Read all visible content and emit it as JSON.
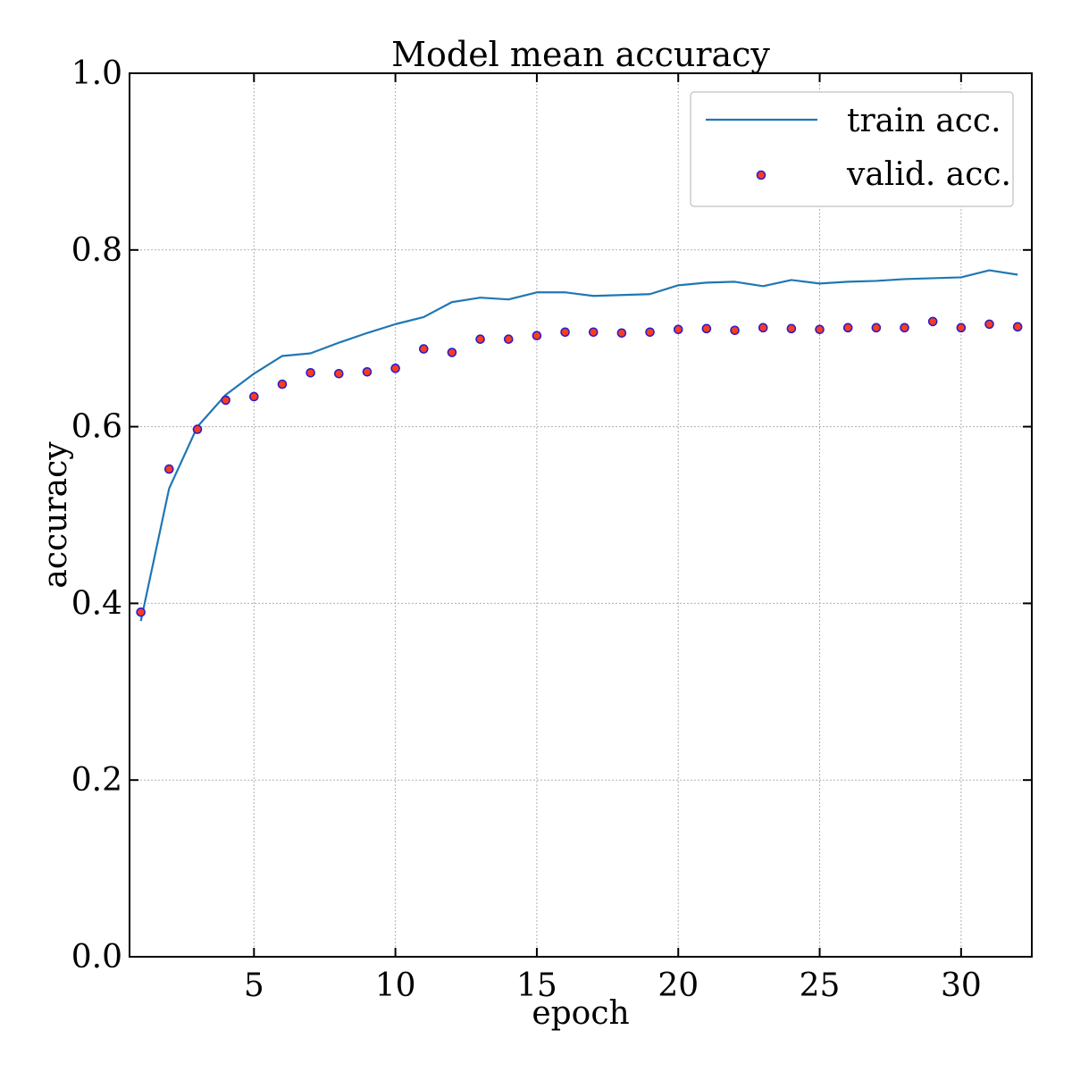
{
  "chart_data": {
    "type": "line",
    "title": "Model mean accuracy",
    "xlabel": "epoch",
    "ylabel": "accuracy",
    "xlim": [
      0.6,
      32.5
    ],
    "ylim": [
      0.0,
      1.0
    ],
    "xticks": [
      5,
      10,
      15,
      20,
      25,
      30
    ],
    "yticks": [
      0.0,
      0.2,
      0.4,
      0.6,
      0.8,
      1.0
    ],
    "xtick_labels": [
      "5",
      "10",
      "15",
      "20",
      "25",
      "30"
    ],
    "ytick_labels": [
      "0.0",
      "0.2",
      "0.4",
      "0.6",
      "0.8",
      "1.0"
    ],
    "grid": true,
    "legend_position": "top-right",
    "series": [
      {
        "name": "train acc.",
        "style": "line",
        "color": "#1f77b4",
        "x": [
          1,
          2,
          3,
          4,
          5,
          6,
          7,
          8,
          9,
          10,
          11,
          12,
          13,
          14,
          15,
          16,
          17,
          18,
          19,
          20,
          21,
          22,
          23,
          24,
          25,
          26,
          27,
          28,
          29,
          30,
          31,
          32
        ],
        "y": [
          0.38,
          0.53,
          0.6,
          0.636,
          0.66,
          0.68,
          0.683,
          0.695,
          0.706,
          0.716,
          0.724,
          0.741,
          0.746,
          0.744,
          0.752,
          0.752,
          0.748,
          0.749,
          0.75,
          0.76,
          0.763,
          0.764,
          0.759,
          0.766,
          0.762,
          0.764,
          0.765,
          0.767,
          0.768,
          0.769,
          0.777,
          0.772
        ]
      },
      {
        "name": "valid. acc.",
        "style": "scatter",
        "marker_face": "#ff3b1f",
        "marker_edge": "#2d1ec8",
        "x": [
          1,
          2,
          3,
          4,
          5,
          6,
          7,
          8,
          9,
          10,
          11,
          12,
          13,
          14,
          15,
          16,
          17,
          18,
          19,
          20,
          21,
          22,
          23,
          24,
          25,
          26,
          27,
          28,
          29,
          30,
          31,
          32
        ],
        "y": [
          0.39,
          0.552,
          0.597,
          0.63,
          0.634,
          0.648,
          0.661,
          0.66,
          0.662,
          0.666,
          0.688,
          0.684,
          0.699,
          0.699,
          0.703,
          0.707,
          0.707,
          0.706,
          0.707,
          0.71,
          0.711,
          0.709,
          0.712,
          0.711,
          0.71,
          0.712,
          0.712,
          0.712,
          0.719,
          0.712,
          0.716,
          0.713
        ]
      }
    ]
  }
}
